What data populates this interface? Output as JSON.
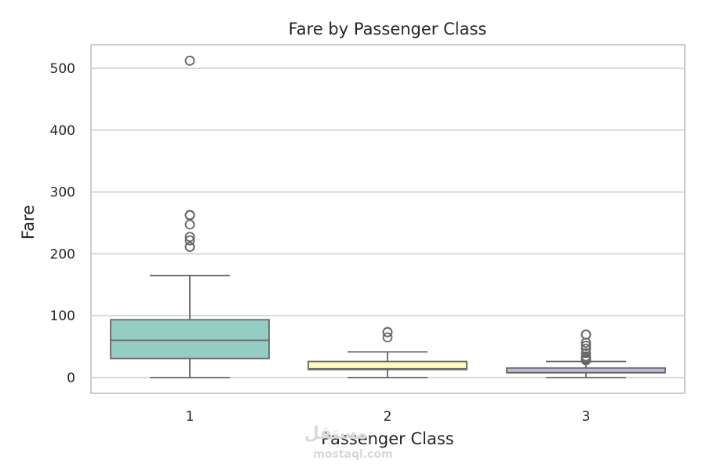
{
  "chart_data": {
    "type": "box",
    "title": "Fare by Passenger Class",
    "xlabel": "Passenger Class",
    "ylabel": "Fare",
    "categories": [
      "1",
      "2",
      "3"
    ],
    "yticks": [
      "0",
      "100",
      "200",
      "300",
      "400",
      "500"
    ],
    "ylim": [
      -25,
      540
    ],
    "grid": true,
    "boxes": [
      {
        "category": "1",
        "min": 0,
        "q1": 30.9,
        "median": 60.3,
        "q3": 93.5,
        "max": 164.9,
        "outliers": [
          512.3,
          263,
          262.4,
          247.5,
          227.5,
          221.8,
          211.3,
          211.5
        ],
        "color": "#96cdc2"
      },
      {
        "category": "2",
        "min": 0,
        "q1": 13,
        "median": 14.25,
        "q3": 26,
        "max": 41.6,
        "outliers": [
          73.5,
          65,
          73.5
        ],
        "color": "#fffcbc"
      },
      {
        "category": "3",
        "min": 0,
        "q1": 7.75,
        "median": 8.05,
        "q3": 15.5,
        "max": 26,
        "outliers": [
          69.55,
          69.55,
          56.5,
          51.5,
          46.9,
          39.7,
          34.4,
          31.3,
          29.1,
          27.9
        ],
        "color": "#bebad9"
      }
    ],
    "line_color": "#676767",
    "grid_color": "#cccccc",
    "spine_color": "#cccccc"
  },
  "watermark": {
    "arabic": "مستقل",
    "latin": "mostaql.com"
  }
}
